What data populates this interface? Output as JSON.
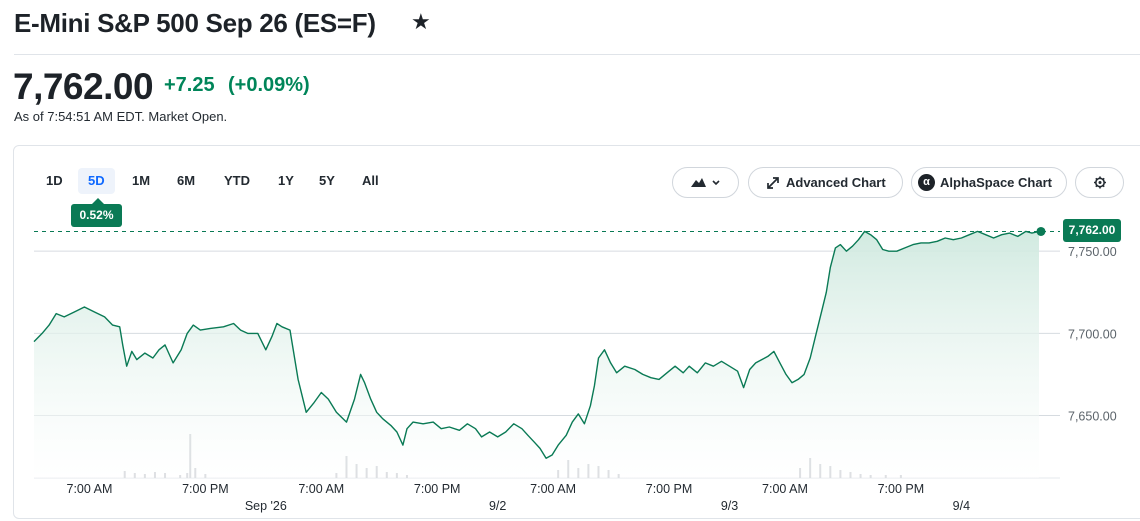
{
  "header": {
    "title": "E-Mini S&P 500 Sep 26 (ES=F)",
    "favorite_icon": "star-icon",
    "price": "7,762.00",
    "change": "+7.25",
    "change_percent": "(+0.09%)",
    "as_of": "As of 7:54:51 AM EDT. Market Open."
  },
  "toolbar": {
    "ranges": [
      "1D",
      "5D",
      "1M",
      "6M",
      "YTD",
      "1Y",
      "5Y",
      "All"
    ],
    "active_range": "5D",
    "range_change_badge": "0.52%",
    "chart_type_icon": "mountain-chart-icon",
    "advanced_chart_label": "Advanced Chart",
    "advanced_chart_icon": "expand-arrow-icon",
    "alphaspace_label": "AlphaSpace Chart",
    "alphaspace_icon": "alpha-logo-icon",
    "settings_icon": "gear-icon"
  },
  "colors": {
    "up": "#008559",
    "line": "#0a7a55",
    "fill": "#dff1ea",
    "badge": "#0a7a55",
    "active_tab": "#0f69ff"
  },
  "chart_data": {
    "type": "area",
    "title": "",
    "xlabel": "",
    "ylabel": "",
    "ylim": [
      7612,
      7772
    ],
    "y_ticks": [
      7650,
      7700,
      7750
    ],
    "y_tick_labels": [
      "7,650.00",
      "7,700.00",
      "7,750.00"
    ],
    "grid": true,
    "current_price_label": "7,762.00",
    "reference_line": 7762,
    "x_tick_labels": [
      {
        "label": "7:00 AM",
        "t": 0.055
      },
      {
        "label": "7:00 PM",
        "t": 0.17
      },
      {
        "label": "7:00 AM",
        "t": 0.285
      },
      {
        "label": "7:00 PM",
        "t": 0.4
      },
      {
        "label": "7:00 AM",
        "t": 0.515
      },
      {
        "label": "7:00 PM",
        "t": 0.63
      },
      {
        "label": "7:00 AM",
        "t": 0.745
      },
      {
        "label": "7:00 PM",
        "t": 0.86
      }
    ],
    "date_labels": [
      {
        "label": "Sep '26",
        "t": 0.23
      },
      {
        "label": "9/2",
        "t": 0.46
      },
      {
        "label": "9/3",
        "t": 0.69
      },
      {
        "label": "9/4",
        "t": 0.92
      }
    ],
    "series": [
      {
        "values": [
          [
            0.0,
            7695
          ],
          [
            0.008,
            7700
          ],
          [
            0.015,
            7705
          ],
          [
            0.022,
            7712
          ],
          [
            0.03,
            7710
          ],
          [
            0.04,
            7713
          ],
          [
            0.05,
            7716
          ],
          [
            0.06,
            7713
          ],
          [
            0.07,
            7710
          ],
          [
            0.078,
            7705
          ],
          [
            0.085,
            7704
          ],
          [
            0.088,
            7693
          ],
          [
            0.092,
            7680
          ],
          [
            0.097,
            7689
          ],
          [
            0.102,
            7684
          ],
          [
            0.11,
            7688
          ],
          [
            0.118,
            7685
          ],
          [
            0.124,
            7690
          ],
          [
            0.13,
            7693
          ],
          [
            0.138,
            7682
          ],
          [
            0.146,
            7690
          ],
          [
            0.152,
            7700
          ],
          [
            0.158,
            7705
          ],
          [
            0.165,
            7702
          ],
          [
            0.175,
            7703
          ],
          [
            0.188,
            7704
          ],
          [
            0.198,
            7706
          ],
          [
            0.205,
            7702
          ],
          [
            0.212,
            7700
          ],
          [
            0.222,
            7700
          ],
          [
            0.23,
            7690
          ],
          [
            0.236,
            7698
          ],
          [
            0.241,
            7706
          ],
          [
            0.246,
            7704
          ],
          [
            0.254,
            7702
          ],
          [
            0.262,
            7672
          ],
          [
            0.27,
            7652
          ],
          [
            0.278,
            7658
          ],
          [
            0.285,
            7664
          ],
          [
            0.292,
            7660
          ],
          [
            0.3,
            7652
          ],
          [
            0.31,
            7646
          ],
          [
            0.318,
            7660
          ],
          [
            0.324,
            7675
          ],
          [
            0.328,
            7670
          ],
          [
            0.334,
            7660
          ],
          [
            0.34,
            7652
          ],
          [
            0.346,
            7648
          ],
          [
            0.354,
            7644
          ],
          [
            0.36,
            7640
          ],
          [
            0.366,
            7632
          ],
          [
            0.37,
            7642
          ],
          [
            0.376,
            7646
          ],
          [
            0.386,
            7645
          ],
          [
            0.396,
            7646
          ],
          [
            0.404,
            7642
          ],
          [
            0.412,
            7643
          ],
          [
            0.422,
            7641
          ],
          [
            0.43,
            7645
          ],
          [
            0.438,
            7642
          ],
          [
            0.444,
            7637
          ],
          [
            0.452,
            7640
          ],
          [
            0.46,
            7637
          ],
          [
            0.468,
            7640
          ],
          [
            0.476,
            7645
          ],
          [
            0.484,
            7642
          ],
          [
            0.49,
            7638
          ],
          [
            0.496,
            7634
          ],
          [
            0.502,
            7630
          ],
          [
            0.508,
            7624
          ],
          [
            0.514,
            7626
          ],
          [
            0.52,
            7632
          ],
          [
            0.528,
            7638
          ],
          [
            0.534,
            7646
          ],
          [
            0.54,
            7651
          ],
          [
            0.546,
            7645
          ],
          [
            0.552,
            7656
          ],
          [
            0.556,
            7668
          ],
          [
            0.56,
            7685
          ],
          [
            0.566,
            7690
          ],
          [
            0.572,
            7682
          ],
          [
            0.578,
            7676
          ],
          [
            0.586,
            7680
          ],
          [
            0.596,
            7678
          ],
          [
            0.604,
            7675
          ],
          [
            0.612,
            7673
          ],
          [
            0.62,
            7672
          ],
          [
            0.628,
            7676
          ],
          [
            0.636,
            7680
          ],
          [
            0.644,
            7676
          ],
          [
            0.65,
            7680
          ],
          [
            0.658,
            7676
          ],
          [
            0.666,
            7682
          ],
          [
            0.674,
            7680
          ],
          [
            0.682,
            7683
          ],
          [
            0.69,
            7680
          ],
          [
            0.698,
            7677
          ],
          [
            0.704,
            7667
          ],
          [
            0.71,
            7678
          ],
          [
            0.716,
            7682
          ],
          [
            0.722,
            7684
          ],
          [
            0.728,
            7686
          ],
          [
            0.734,
            7689
          ],
          [
            0.74,
            7682
          ],
          [
            0.746,
            7675
          ],
          [
            0.752,
            7670
          ],
          [
            0.758,
            7672
          ],
          [
            0.764,
            7675
          ],
          [
            0.77,
            7685
          ],
          [
            0.776,
            7700
          ],
          [
            0.782,
            7715
          ],
          [
            0.786,
            7725
          ],
          [
            0.79,
            7740
          ],
          [
            0.795,
            7752
          ],
          [
            0.8,
            7754
          ],
          [
            0.806,
            7750
          ],
          [
            0.812,
            7753
          ],
          [
            0.818,
            7757
          ],
          [
            0.824,
            7762
          ],
          [
            0.83,
            7760
          ],
          [
            0.836,
            7757
          ],
          [
            0.842,
            7751
          ],
          [
            0.848,
            7750
          ],
          [
            0.856,
            7750
          ],
          [
            0.864,
            7752
          ],
          [
            0.872,
            7754
          ],
          [
            0.88,
            7755
          ],
          [
            0.888,
            7755
          ],
          [
            0.896,
            7756
          ],
          [
            0.904,
            7758
          ],
          [
            0.912,
            7757
          ],
          [
            0.92,
            7758
          ],
          [
            0.928,
            7760
          ],
          [
            0.936,
            7762
          ],
          [
            0.944,
            7760
          ],
          [
            0.952,
            7758
          ],
          [
            0.96,
            7760
          ],
          [
            0.968,
            7761
          ],
          [
            0.976,
            7759
          ],
          [
            0.984,
            7762
          ],
          [
            0.99,
            7761
          ],
          [
            0.997,
            7762
          ]
        ]
      }
    ],
    "volume": [
      [
        0.09,
        7
      ],
      [
        0.1,
        5
      ],
      [
        0.11,
        4
      ],
      [
        0.12,
        6
      ],
      [
        0.13,
        5
      ],
      [
        0.145,
        3
      ],
      [
        0.152,
        5
      ],
      [
        0.155,
        44
      ],
      [
        0.16,
        10
      ],
      [
        0.17,
        4
      ],
      [
        0.3,
        5
      ],
      [
        0.31,
        22
      ],
      [
        0.32,
        14
      ],
      [
        0.33,
        10
      ],
      [
        0.34,
        12
      ],
      [
        0.35,
        6
      ],
      [
        0.36,
        5
      ],
      [
        0.37,
        3
      ],
      [
        0.52,
        8
      ],
      [
        0.53,
        18
      ],
      [
        0.54,
        10
      ],
      [
        0.55,
        14
      ],
      [
        0.56,
        12
      ],
      [
        0.57,
        8
      ],
      [
        0.58,
        4
      ],
      [
        0.76,
        10
      ],
      [
        0.77,
        20
      ],
      [
        0.78,
        14
      ],
      [
        0.79,
        12
      ],
      [
        0.8,
        8
      ],
      [
        0.81,
        6
      ],
      [
        0.82,
        4
      ],
      [
        0.83,
        3
      ],
      [
        0.845,
        3
      ],
      [
        0.86,
        3
      ]
    ]
  }
}
